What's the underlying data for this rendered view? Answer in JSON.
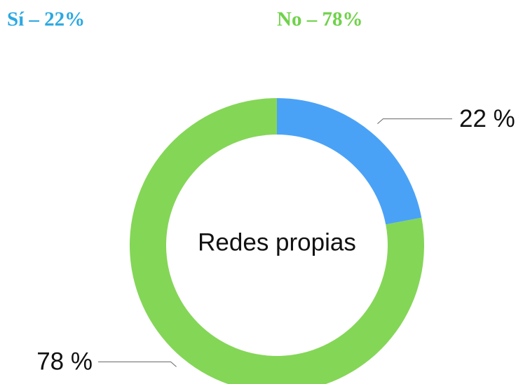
{
  "chart_data": {
    "type": "donut",
    "categories": [
      "Sí – 22%",
      "No – 78%"
    ],
    "values": [
      22,
      78
    ],
    "value_labels": [
      "22 %",
      "78 %"
    ],
    "colors": [
      "#4aa2f6",
      "#84d657"
    ],
    "legend_colors": [
      "#2aa8e2",
      "#6fd24a"
    ],
    "center_label": "Redes propias"
  }
}
